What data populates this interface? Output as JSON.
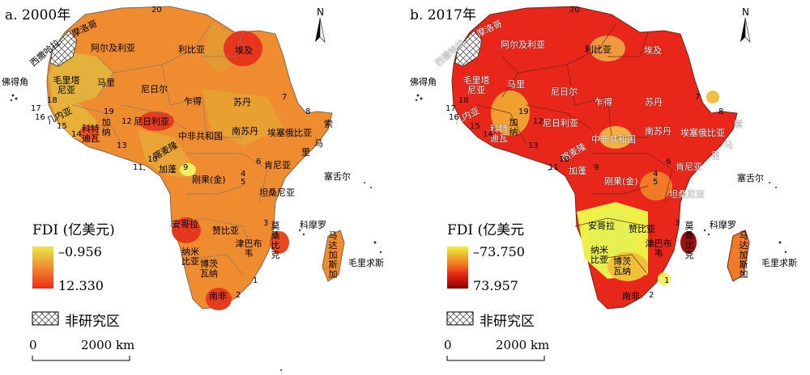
{
  "maps": [
    {
      "title": "a. 2000年",
      "legend_title": "FDI (亿美元)",
      "legend_max_label": "–0.956",
      "legend_min_label": "12.330",
      "legend_color_top": "#e8e84a",
      "legend_color_bottom": "#ee2a18",
      "base_color": "#f08a30",
      "hatch_label": "非研究区",
      "scale_zero": "0",
      "scale_label": "2000 km",
      "north": "N"
    },
    {
      "title": "b. 2017年",
      "legend_title": "FDI (亿美元",
      "legend_max_label": "–73.750",
      "legend_min_label": "73.957",
      "legend_color_top": "#f0f040",
      "legend_color_bottom": "#8a0000",
      "base_color": "#e8261a",
      "hatch_label": "非研究区",
      "scale_zero": "0",
      "scale_label": "2000 km",
      "north": "N"
    }
  ],
  "countries": {
    "morocco": "摩洛哥",
    "western_sahara": "西撒哈拉",
    "algeria": "阿尔及利亚",
    "libya": "利比亚",
    "egypt": "埃及",
    "cape_verde": "佛得角",
    "mauritania": "毛里塔尼亚",
    "mali": "马里",
    "niger": "尼日尔",
    "chad": "乍得",
    "sudan": "苏丹",
    "guinea": "几内亚",
    "cote_divoire": "科特迪瓦",
    "ghana": "加纳",
    "nigeria": "尼日利亚",
    "south_sudan": "南苏丹",
    "ethiopia": "埃塞俄比亚",
    "somalia": "索马里",
    "car": "中非共和国",
    "cameroon": "喀麦隆",
    "gabon": "加蓬",
    "drc": "刚果(金)",
    "kenya": "肯尼亚",
    "tanzania": "坦桑尼亚",
    "seychelles": "塞舌尔",
    "angola": "安哥拉",
    "zambia": "赞比亚",
    "mozambique": "莫桑比克",
    "comoros": "科摩罗",
    "madagascar": "马达加斯加",
    "namibia": "纳米比亚",
    "zimbabwe": "津巴布韦",
    "botswana": "博茨瓦纳",
    "mauritius": "毛里求斯",
    "south_africa": "南非",
    "country_20": "20"
  },
  "numbers": [
    "1",
    "2",
    "3",
    "4",
    "5",
    "6",
    "7",
    "8",
    "9",
    "10",
    "11",
    "12",
    "13",
    "14",
    "15",
    "16",
    "17",
    "18",
    "19",
    "20"
  ]
}
